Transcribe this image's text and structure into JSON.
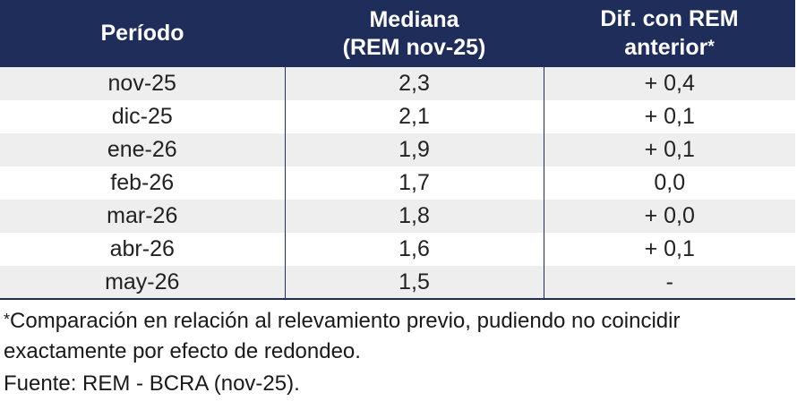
{
  "table": {
    "headers": {
      "period": "Período",
      "median_line1": "Mediana",
      "median_line2": "(REM nov-25)",
      "diff_line1": "Dif. con REM",
      "diff_line2": "anterior",
      "diff_star": "*"
    },
    "rows": [
      {
        "period": "nov-25",
        "median": "2,3",
        "diff": "+ 0,4"
      },
      {
        "period": "dic-25",
        "median": "2,1",
        "diff": "+ 0,1"
      },
      {
        "period": "ene-26",
        "median": "1,9",
        "diff": "+ 0,1"
      },
      {
        "period": "feb-26",
        "median": "1,7",
        "diff": "0,0"
      },
      {
        "period": "mar-26",
        "median": "1,8",
        "diff": "+ 0,0"
      },
      {
        "period": "abr-26",
        "median": "1,6",
        "diff": "+ 0,1"
      },
      {
        "period": "may-26",
        "median": "1,5",
        "diff": "-"
      }
    ]
  },
  "notes": {
    "star": "*",
    "footnote": "Comparación en relación al relevamiento previo, pudiendo no coincidir exactamente por efecto de redondeo.",
    "source": "Fuente: REM - BCRA (nov-25)."
  },
  "colors": {
    "header_bg": "#1f2d5a",
    "header_text": "#ffffff",
    "row_shade": "#eeeeee"
  }
}
